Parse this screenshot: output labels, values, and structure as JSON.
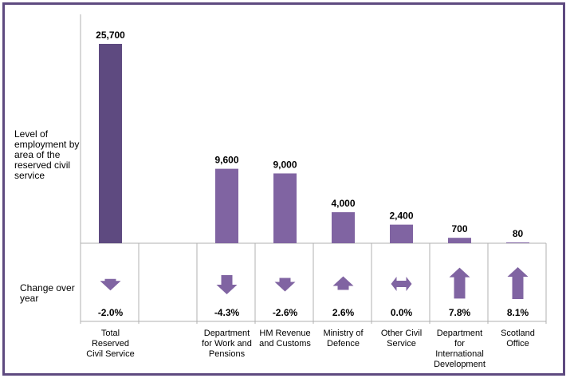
{
  "chart_data": {
    "type": "bar",
    "row_labels": {
      "level": "Level of employment by area of the reserved civil service",
      "change": "Change over year"
    },
    "categories": [
      "Total Reserved Civil Service",
      "",
      "Department for Work and Pensions",
      "HM Revenue and Customs",
      "Ministry of Defence",
      "Other Civil Service",
      "Department for International Development",
      "Scotland Office"
    ],
    "category_lines": [
      [
        "Total",
        "Reserved",
        "Civil Service"
      ],
      [],
      [
        "Department",
        "for Work and",
        "Pensions"
      ],
      [
        "HM Revenue",
        "and Customs"
      ],
      [
        "Ministry of",
        "Defence"
      ],
      [
        "Other Civil",
        "Service"
      ],
      [
        "Department",
        "for",
        "International",
        "Development"
      ],
      [
        "Scotland",
        "Office"
      ]
    ],
    "values": [
      25700,
      null,
      9600,
      9000,
      4000,
      2400,
      700,
      80
    ],
    "value_labels": [
      "25,700",
      "",
      "9,600",
      "9,000",
      "4,000",
      "2,400",
      "700",
      "80"
    ],
    "change_values": [
      -2.0,
      null,
      -4.3,
      -2.6,
      2.6,
      0.0,
      7.8,
      8.1
    ],
    "change_labels": [
      "-2.0%",
      "",
      "-4.3%",
      "-2.6%",
      "2.6%",
      "0.0%",
      "7.8%",
      "8.1%"
    ],
    "ylim": [
      0,
      26000
    ],
    "colors": {
      "total_bar": "#5e4a80",
      "bar": "#8064a2",
      "arrow": "#8064a2",
      "frame": "#5e4a80",
      "axis": "#b0b0b0"
    }
  }
}
